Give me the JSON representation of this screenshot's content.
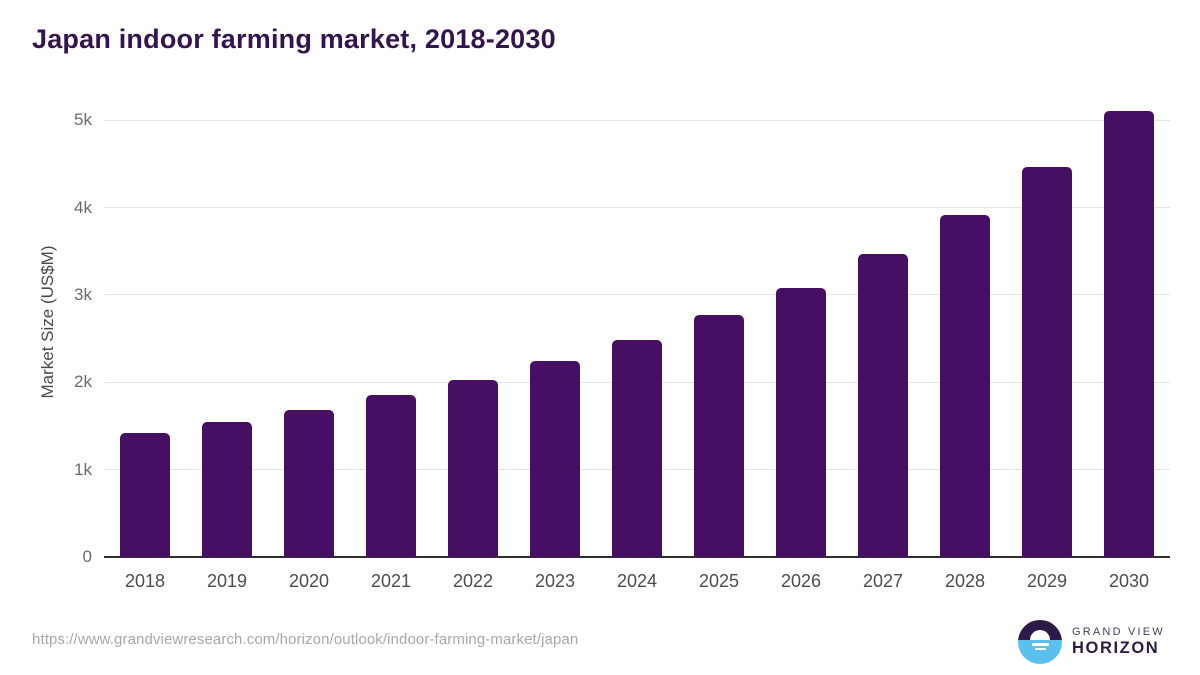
{
  "title": "Japan indoor farming market, 2018-2030",
  "y_axis_label": "Market Size (US$M)",
  "source_url": "https://www.grandviewresearch.com/horizon/outlook/indoor-farming-market/japan",
  "logo": {
    "top_text": "GRAND VIEW",
    "bottom_text": "HORIZON"
  },
  "chart_data": {
    "type": "bar",
    "title": "Japan indoor farming market, 2018-2030",
    "xlabel": "",
    "ylabel": "Market Size (US$M)",
    "unit": "US$M",
    "categories": [
      "2018",
      "2019",
      "2020",
      "2021",
      "2022",
      "2023",
      "2024",
      "2025",
      "2026",
      "2027",
      "2028",
      "2029",
      "2030"
    ],
    "values": [
      1420,
      1550,
      1680,
      1850,
      2025,
      2245,
      2480,
      2770,
      3085,
      3465,
      3920,
      4465,
      5105
    ],
    "ylim": [
      0,
      5290
    ],
    "yticks": [
      0,
      1000,
      2000,
      3000,
      4000,
      5000
    ],
    "ytick_labels": [
      "0",
      "1k",
      "2k",
      "3k",
      "4k",
      "5k"
    ],
    "grid": true,
    "legend_position": "none",
    "bar_color": "#470f63"
  },
  "colors": {
    "title_color": "#331450",
    "bar_color": "#470f63",
    "gridline_color": "#e3e3e3",
    "axis_color": "#2e2e2e",
    "tick_label_color": "#6b6b6b",
    "x_label_color": "#4d4d4d",
    "url_color": "#a8a8a8",
    "logo_purple": "#2e1a47",
    "logo_blue": "#5ac1ee"
  }
}
